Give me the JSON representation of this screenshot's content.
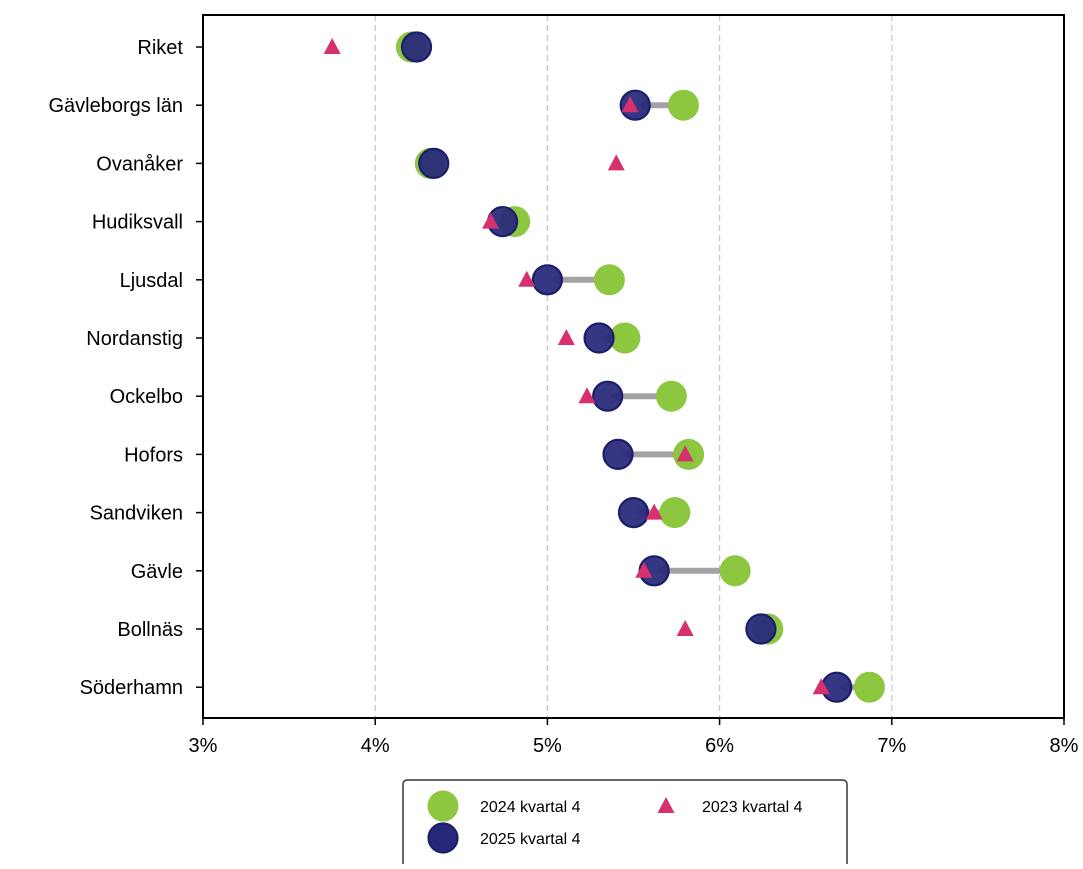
{
  "chart_data": {
    "type": "scatter",
    "title": "",
    "xlabel": "",
    "ylabel": "",
    "xlim": [
      3,
      8
    ],
    "x_ticks": [
      3,
      4,
      5,
      6,
      7,
      8
    ],
    "x_tick_labels": [
      "3%",
      "4%",
      "5%",
      "6%",
      "7%",
      "8%"
    ],
    "x_grid": "dashed vertical",
    "legend_position": "bottom-center",
    "categories": [
      "Riket",
      "Gävleborgs län",
      "Ovanåker",
      "Hudiksvall",
      "Ljusdal",
      "Nordanstig",
      "Ockelbo",
      "Hofors",
      "Sandviken",
      "Gävle",
      "Bollnäs",
      "Söderhamn"
    ],
    "series": [
      {
        "name": "2024 kvartal 4",
        "marker": "circle",
        "color": "#8dc63f",
        "values": [
          4.21,
          5.79,
          4.32,
          4.81,
          5.36,
          5.45,
          5.72,
          5.82,
          5.74,
          6.09,
          6.28,
          6.87
        ]
      },
      {
        "name": "2025 kvartal 4",
        "marker": "circle",
        "color": "#27287a",
        "values": [
          4.24,
          5.51,
          4.34,
          4.74,
          5.0,
          5.3,
          5.35,
          5.41,
          5.5,
          5.62,
          6.24,
          6.68
        ]
      },
      {
        "name": "2023 kvartal 4",
        "marker": "triangle",
        "color": "#d6306e",
        "values": [
          3.75,
          5.48,
          5.4,
          4.67,
          4.88,
          5.11,
          5.23,
          5.8,
          5.62,
          5.56,
          5.8,
          6.59
        ]
      }
    ],
    "arrows": {
      "from_series": "2024 kvartal 4",
      "to_series": "2025 kvartal 4",
      "color": "#a3a3a3"
    }
  }
}
